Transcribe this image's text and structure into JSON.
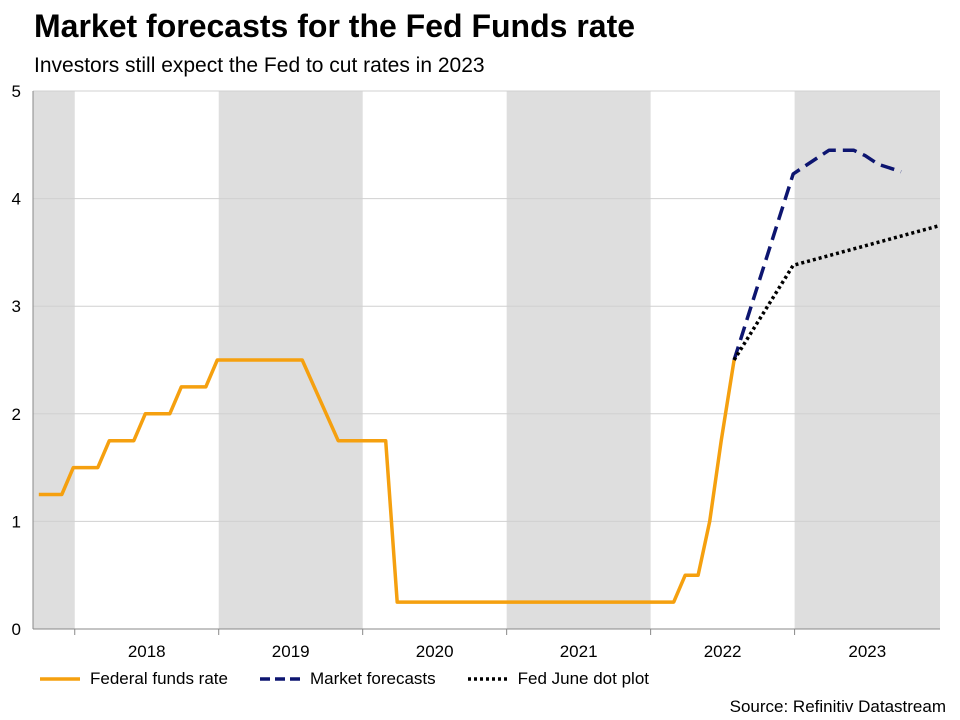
{
  "chart_data": {
    "type": "line",
    "title": "Market forecasts for the Fed Funds rate",
    "subtitle": "Investors still expect the Fed to cut rates in 2023",
    "source": "Source: Refinitiv Datastream",
    "xlabel": "",
    "ylabel": "",
    "xlim": [
      2017.3,
      2023.6
    ],
    "ylim": [
      0,
      5
    ],
    "y_ticks": [
      0,
      1,
      2,
      3,
      4,
      5
    ],
    "x_year_labels": [
      "2018",
      "2019",
      "2020",
      "2021",
      "2022",
      "2023"
    ],
    "shaded_years": [
      {
        "start": 2017.3,
        "end": 2017.59
      },
      {
        "start": 2018.59,
        "end": 2019.59
      },
      {
        "start": 2020.59,
        "end": 2021.59
      },
      {
        "start": 2022.59,
        "end": 2023.6
      }
    ],
    "grid": true,
    "legend_position": "bottom",
    "series": [
      {
        "name": "Federal funds rate",
        "color": "#f5a00f",
        "style": "solid",
        "points": [
          [
            2017.34,
            1.25
          ],
          [
            2017.5,
            1.25
          ],
          [
            2017.58,
            1.5
          ],
          [
            2017.75,
            1.5
          ],
          [
            2017.83,
            1.75
          ],
          [
            2018.0,
            1.75
          ],
          [
            2018.08,
            2.0
          ],
          [
            2018.25,
            2.0
          ],
          [
            2018.33,
            2.25
          ],
          [
            2018.5,
            2.25
          ],
          [
            2018.58,
            2.5
          ],
          [
            2019.17,
            2.5
          ],
          [
            2019.42,
            1.75
          ],
          [
            2019.75,
            1.75
          ],
          [
            2019.83,
            0.25
          ],
          [
            2021.75,
            0.25
          ],
          [
            2021.83,
            0.5
          ],
          [
            2021.92,
            0.5
          ],
          [
            2022.0,
            1.0
          ],
          [
            2022.08,
            1.75
          ],
          [
            2022.17,
            2.5
          ]
        ]
      },
      {
        "name": "Market forecasts",
        "color": "#0d1570",
        "style": "dashed",
        "points": [
          [
            2022.17,
            2.5
          ],
          [
            2022.58,
            4.23
          ],
          [
            2022.75,
            4.38
          ],
          [
            2022.83,
            4.45
          ],
          [
            2023.0,
            4.45
          ],
          [
            2023.08,
            4.4
          ],
          [
            2023.17,
            4.32
          ],
          [
            2023.33,
            4.25
          ]
        ]
      },
      {
        "name": "Fed June dot plot",
        "color": "#000000",
        "style": "dotted",
        "points": [
          [
            2022.17,
            2.5
          ],
          [
            2022.58,
            3.38
          ],
          [
            2023.6,
            3.75
          ]
        ]
      }
    ]
  }
}
